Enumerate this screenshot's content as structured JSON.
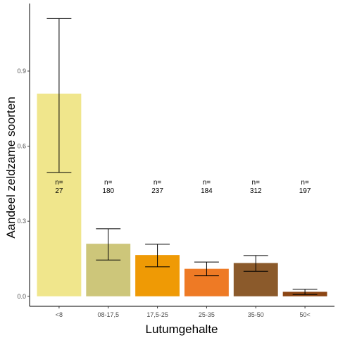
{
  "chart_data": {
    "type": "bar",
    "xlabel": "Lutumgehalte",
    "ylabel": "Aandeel zeldzame soorten",
    "categories": [
      "<8",
      "08-17,5",
      "17,5-25",
      "25-35",
      "35-50",
      "50<"
    ],
    "values": [
      0.81,
      0.21,
      0.165,
      0.11,
      0.133,
      0.018
    ],
    "error_low": [
      0.495,
      0.145,
      0.118,
      0.082,
      0.1,
      0.007
    ],
    "error_high": [
      1.11,
      0.27,
      0.208,
      0.137,
      0.163,
      0.028
    ],
    "n_prefix": "n=",
    "n": [
      "27",
      "180",
      "237",
      "184",
      "312",
      "197"
    ],
    "n_label_y": 0.43,
    "colors": [
      "#f0e68c",
      "#cdc67a",
      "#ef9a05",
      "#ee7a25",
      "#8b5a2b",
      "#8b4513"
    ],
    "yticks": [
      0.0,
      0.3,
      0.6,
      0.9
    ],
    "ytick_labels": [
      "0.0",
      "0.3",
      "0.6",
      "0.9"
    ],
    "ylim": [
      -0.04,
      1.17
    ],
    "grid": false,
    "legend": "none"
  }
}
